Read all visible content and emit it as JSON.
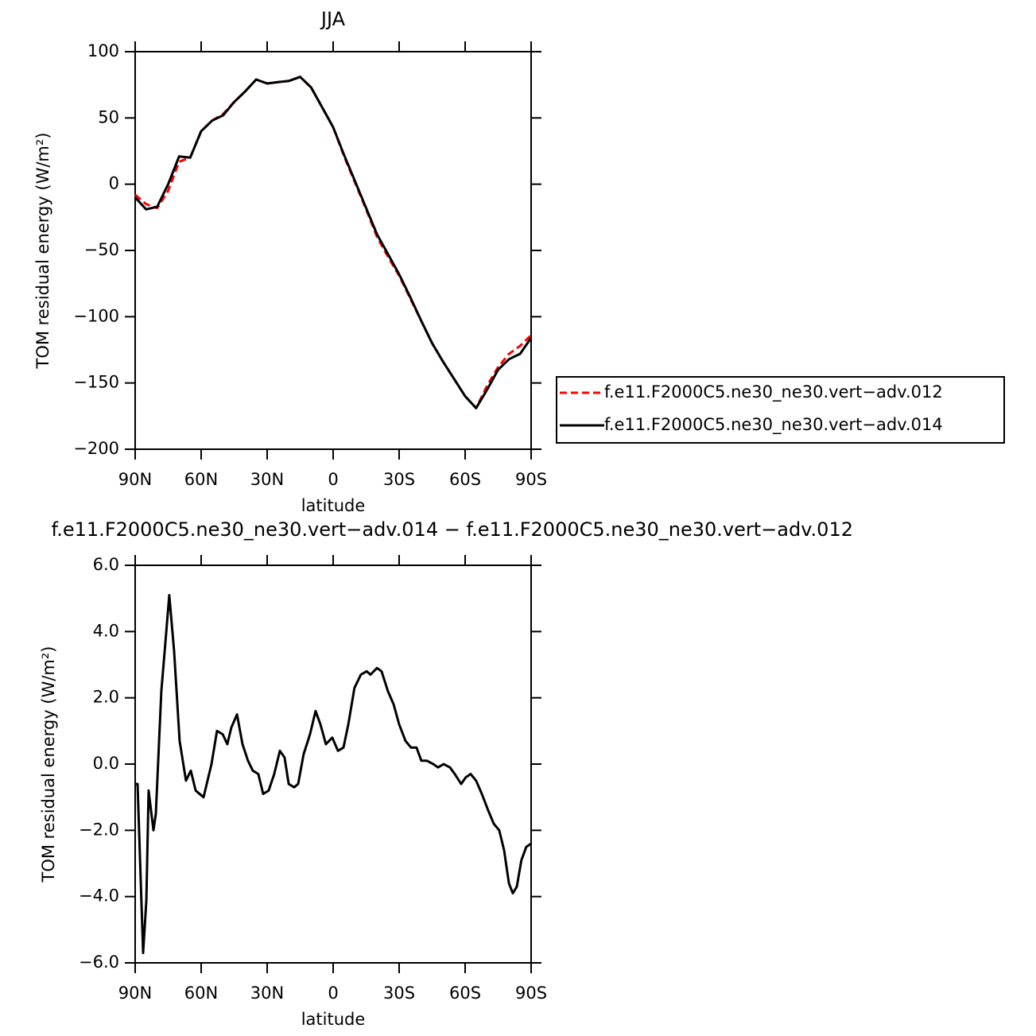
{
  "chart_data": [
    {
      "type": "line",
      "title": "JJA",
      "xlabel": "latitude",
      "ylabel": "TOM residual energy (W/m²)",
      "x": [
        90,
        85,
        80,
        75,
        70,
        65,
        60,
        55,
        50,
        45,
        40,
        35,
        30,
        25,
        20,
        15,
        10,
        5,
        0,
        -5,
        -10,
        -15,
        -20,
        -25,
        -30,
        -35,
        -40,
        -45,
        -50,
        -55,
        -60,
        -65,
        -70,
        -75,
        -80,
        -85,
        -90
      ],
      "series": [
        {
          "name": "f.e11.F2000C5.ne30_ne30.vert−adv.012",
          "color": "#ff0000",
          "line_style": "dashed",
          "values": [
            -8,
            -15,
            -18,
            -5,
            17,
            20,
            40,
            48,
            53,
            62,
            70,
            79,
            76,
            77,
            78,
            81,
            73,
            58,
            43,
            21,
            1,
            -19,
            -40,
            -55,
            -69,
            -86,
            -103,
            -120,
            -134,
            -147,
            -160,
            -169,
            -152,
            -138,
            -128,
            -122,
            -114
          ]
        },
        {
          "name": "f.e11.F2000C5.ne30_ne30.vert−adv.014",
          "color": "#000000",
          "line_style": "solid",
          "values": [
            -10,
            -19,
            -17,
            0,
            21,
            20,
            40,
            48,
            52,
            62,
            70,
            79,
            76,
            77,
            78,
            81,
            73,
            58,
            43,
            22,
            2,
            -18,
            -38,
            -53,
            -68,
            -85,
            -103,
            -120,
            -134,
            -147,
            -160,
            -169,
            -155,
            -140,
            -132,
            -128,
            -116
          ]
        }
      ],
      "xlim": [
        90,
        -90
      ],
      "xticks": [
        {
          "value": 90,
          "label": "90N"
        },
        {
          "value": 60,
          "label": "60N"
        },
        {
          "value": 30,
          "label": "30N"
        },
        0,
        {
          "value": -30,
          "label": "30S"
        },
        {
          "value": -60,
          "label": "60S"
        },
        {
          "value": -90,
          "label": "90S"
        }
      ],
      "ylim": [
        -200,
        100
      ],
      "yticks": [
        {
          "value": -200,
          "label": "−200"
        },
        {
          "value": -150,
          "label": "−150"
        },
        {
          "value": -100,
          "label": "−100"
        },
        {
          "value": -50,
          "label": "−50"
        },
        0,
        50,
        100
      ],
      "legend": "right"
    },
    {
      "type": "line",
      "title": "f.e11.F2000C5.ne30_ne30.vert−adv.014 − f.e11.F2000C5.ne30_ne30.vert−adv.012",
      "xlabel": "latitude",
      "ylabel": "TOM residual energy (W/m²)",
      "x": [
        90,
        88.9,
        86.4,
        84.9,
        83.9,
        81.7,
        80.6,
        78.1,
        76.6,
        74.5,
        72.3,
        69.8,
        66.9,
        64.7,
        62.5,
        58.9,
        55.3,
        52.8,
        50.2,
        48.1,
        46.3,
        43.7,
        41.2,
        38.7,
        36.5,
        34.0,
        31.8,
        29.3,
        26.8,
        24.2,
        22.1,
        20.2,
        17.7,
        15.9,
        13.4,
        10.5,
        8.0,
        5.8,
        3.3,
        0.4,
        -2.2,
        -4.7,
        -6.9,
        -9.7,
        -12.6,
        -15.2,
        -17.0,
        -19.9,
        -22.0,
        -24.9,
        -27.5,
        -30.0,
        -32.9,
        -35.4,
        -37.9,
        -40.1,
        -42.6,
        -45.5,
        -47.7,
        -50.2,
        -53.1,
        -55.3,
        -58.2,
        -60.3,
        -62.5,
        -65.0,
        -67.6,
        -70.5,
        -73.0,
        -75.5,
        -77.7,
        -79.9,
        -81.7,
        -83.5,
        -85.6,
        -87.8,
        -90
      ],
      "series": [
        {
          "color": "#000000",
          "line_style": "solid",
          "values": [
            -0.6,
            -0.6,
            -5.7,
            -4.1,
            -0.8,
            -2.0,
            -1.5,
            2.2,
            3.4,
            5.1,
            3.4,
            0.7,
            -0.5,
            -0.2,
            -0.8,
            -1.0,
            0.0,
            1.0,
            0.9,
            0.6,
            1.1,
            1.5,
            0.6,
            0.1,
            -0.2,
            -0.3,
            -0.9,
            -0.8,
            -0.3,
            0.4,
            0.2,
            -0.6,
            -0.7,
            -0.6,
            0.3,
            0.9,
            1.6,
            1.2,
            0.6,
            0.8,
            0.4,
            0.5,
            1.2,
            2.3,
            2.7,
            2.8,
            2.7,
            2.9,
            2.8,
            2.2,
            1.8,
            1.2,
            0.7,
            0.5,
            0.5,
            0.1,
            0.1,
            0.0,
            -0.1,
            0.0,
            -0.1,
            -0.3,
            -0.6,
            -0.4,
            -0.3,
            -0.5,
            -0.9,
            -1.4,
            -1.8,
            -2.0,
            -2.6,
            -3.6,
            -3.9,
            -3.7,
            -2.9,
            -2.5,
            -2.4
          ]
        }
      ],
      "xlim": [
        90,
        -90
      ],
      "xticks": [
        {
          "value": 90,
          "label": "90N"
        },
        {
          "value": 60,
          "label": "60N"
        },
        {
          "value": 30,
          "label": "30N"
        },
        0,
        {
          "value": -30,
          "label": "30S"
        },
        {
          "value": -60,
          "label": "60S"
        },
        {
          "value": -90,
          "label": "90S"
        }
      ],
      "ylim": [
        -6,
        6
      ],
      "yticks": [
        {
          "value": -6,
          "label": "−6.0"
        },
        {
          "value": -4,
          "label": "−4.0"
        },
        {
          "value": -2,
          "label": "−2.0"
        },
        {
          "value": 0,
          "label": "0.0"
        },
        {
          "value": 2,
          "label": "2.0"
        },
        {
          "value": 4,
          "label": "4.0"
        },
        {
          "value": 6,
          "label": "6.0"
        }
      ]
    }
  ]
}
